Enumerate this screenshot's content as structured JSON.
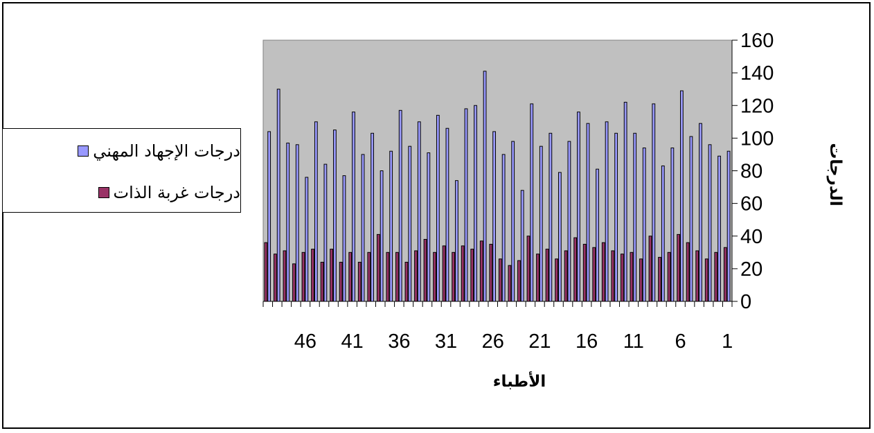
{
  "chart_data": {
    "type": "bar",
    "xlabel": "الأطباء",
    "ylabel": "الدرجات",
    "ylim": [
      0,
      160
    ],
    "y_ticks": [
      "0",
      "20",
      "40",
      "60",
      "80",
      "100",
      "120",
      "140",
      "160"
    ],
    "x_tick_labels": [
      "1",
      "6",
      "11",
      "16",
      "21",
      "26",
      "31",
      "36",
      "41",
      "46"
    ],
    "x_direction": "right-to-left",
    "categories": [
      1,
      2,
      3,
      4,
      5,
      6,
      7,
      8,
      9,
      10,
      11,
      12,
      13,
      14,
      15,
      16,
      17,
      18,
      19,
      20,
      21,
      22,
      23,
      24,
      25,
      26,
      27,
      28,
      29,
      30,
      31,
      32,
      33,
      34,
      35,
      36,
      37,
      38,
      39,
      40,
      41,
      42,
      43,
      44,
      45,
      46,
      47,
      48,
      49,
      50
    ],
    "series": [
      {
        "name": "درجات الإجهاد المهني",
        "color": "#9999ff",
        "values": [
          92,
          89,
          96,
          109,
          101,
          129,
          94,
          83,
          121,
          94,
          103,
          122,
          103,
          110,
          81,
          109,
          116,
          98,
          79,
          103,
          95,
          121,
          68,
          98,
          90,
          104,
          141,
          120,
          118,
          74,
          106,
          114,
          91,
          110,
          95,
          117,
          92,
          80,
          103,
          90,
          116,
          77,
          105,
          84,
          110,
          76,
          96,
          97,
          130,
          104
        ]
      },
      {
        "name": "درجات غربة الذات",
        "color": "#993366",
        "values": [
          33,
          30,
          26,
          31,
          36,
          41,
          30,
          27,
          40,
          26,
          30,
          29,
          31,
          36,
          33,
          35,
          39,
          31,
          26,
          32,
          29,
          40,
          25,
          22,
          26,
          35,
          37,
          32,
          34,
          30,
          34,
          30,
          38,
          31,
          24,
          30,
          30,
          41,
          30,
          24,
          30,
          24,
          32,
          24,
          32,
          30,
          23,
          31,
          29,
          36
        ]
      }
    ],
    "background_color": "#c0c0c0",
    "grid": false,
    "legend_position": "left"
  }
}
